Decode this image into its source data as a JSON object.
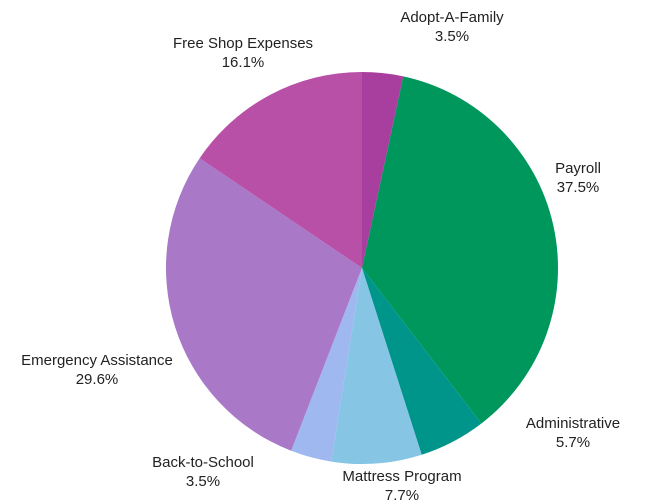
{
  "chart_data": {
    "type": "pie",
    "title": "",
    "slices": [
      {
        "label": "Adopt-A-Family",
        "value": 3.5,
        "value_label": "3.5%",
        "color": "#a83f9e"
      },
      {
        "label": "Payroll",
        "value": 37.5,
        "value_label": "37.5%",
        "color": "#00975c"
      },
      {
        "label": "Administrative",
        "value": 5.7,
        "value_label": "5.7%",
        "color": "#00958a"
      },
      {
        "label": "Mattress Program",
        "value": 7.7,
        "value_label": "7.7%",
        "color": "#86c5e4"
      },
      {
        "label": "Back-to-School",
        "value": 3.5,
        "value_label": "3.5%",
        "color": "#9fb9f0"
      },
      {
        "label": "Emergency Assistance",
        "value": 29.6,
        "value_label": "29.6%",
        "color": "#a978c7"
      },
      {
        "label": "Free Shop Expenses",
        "value": 16.1,
        "value_label": "16.1%",
        "color": "#b750a6"
      }
    ],
    "legend": "none"
  }
}
